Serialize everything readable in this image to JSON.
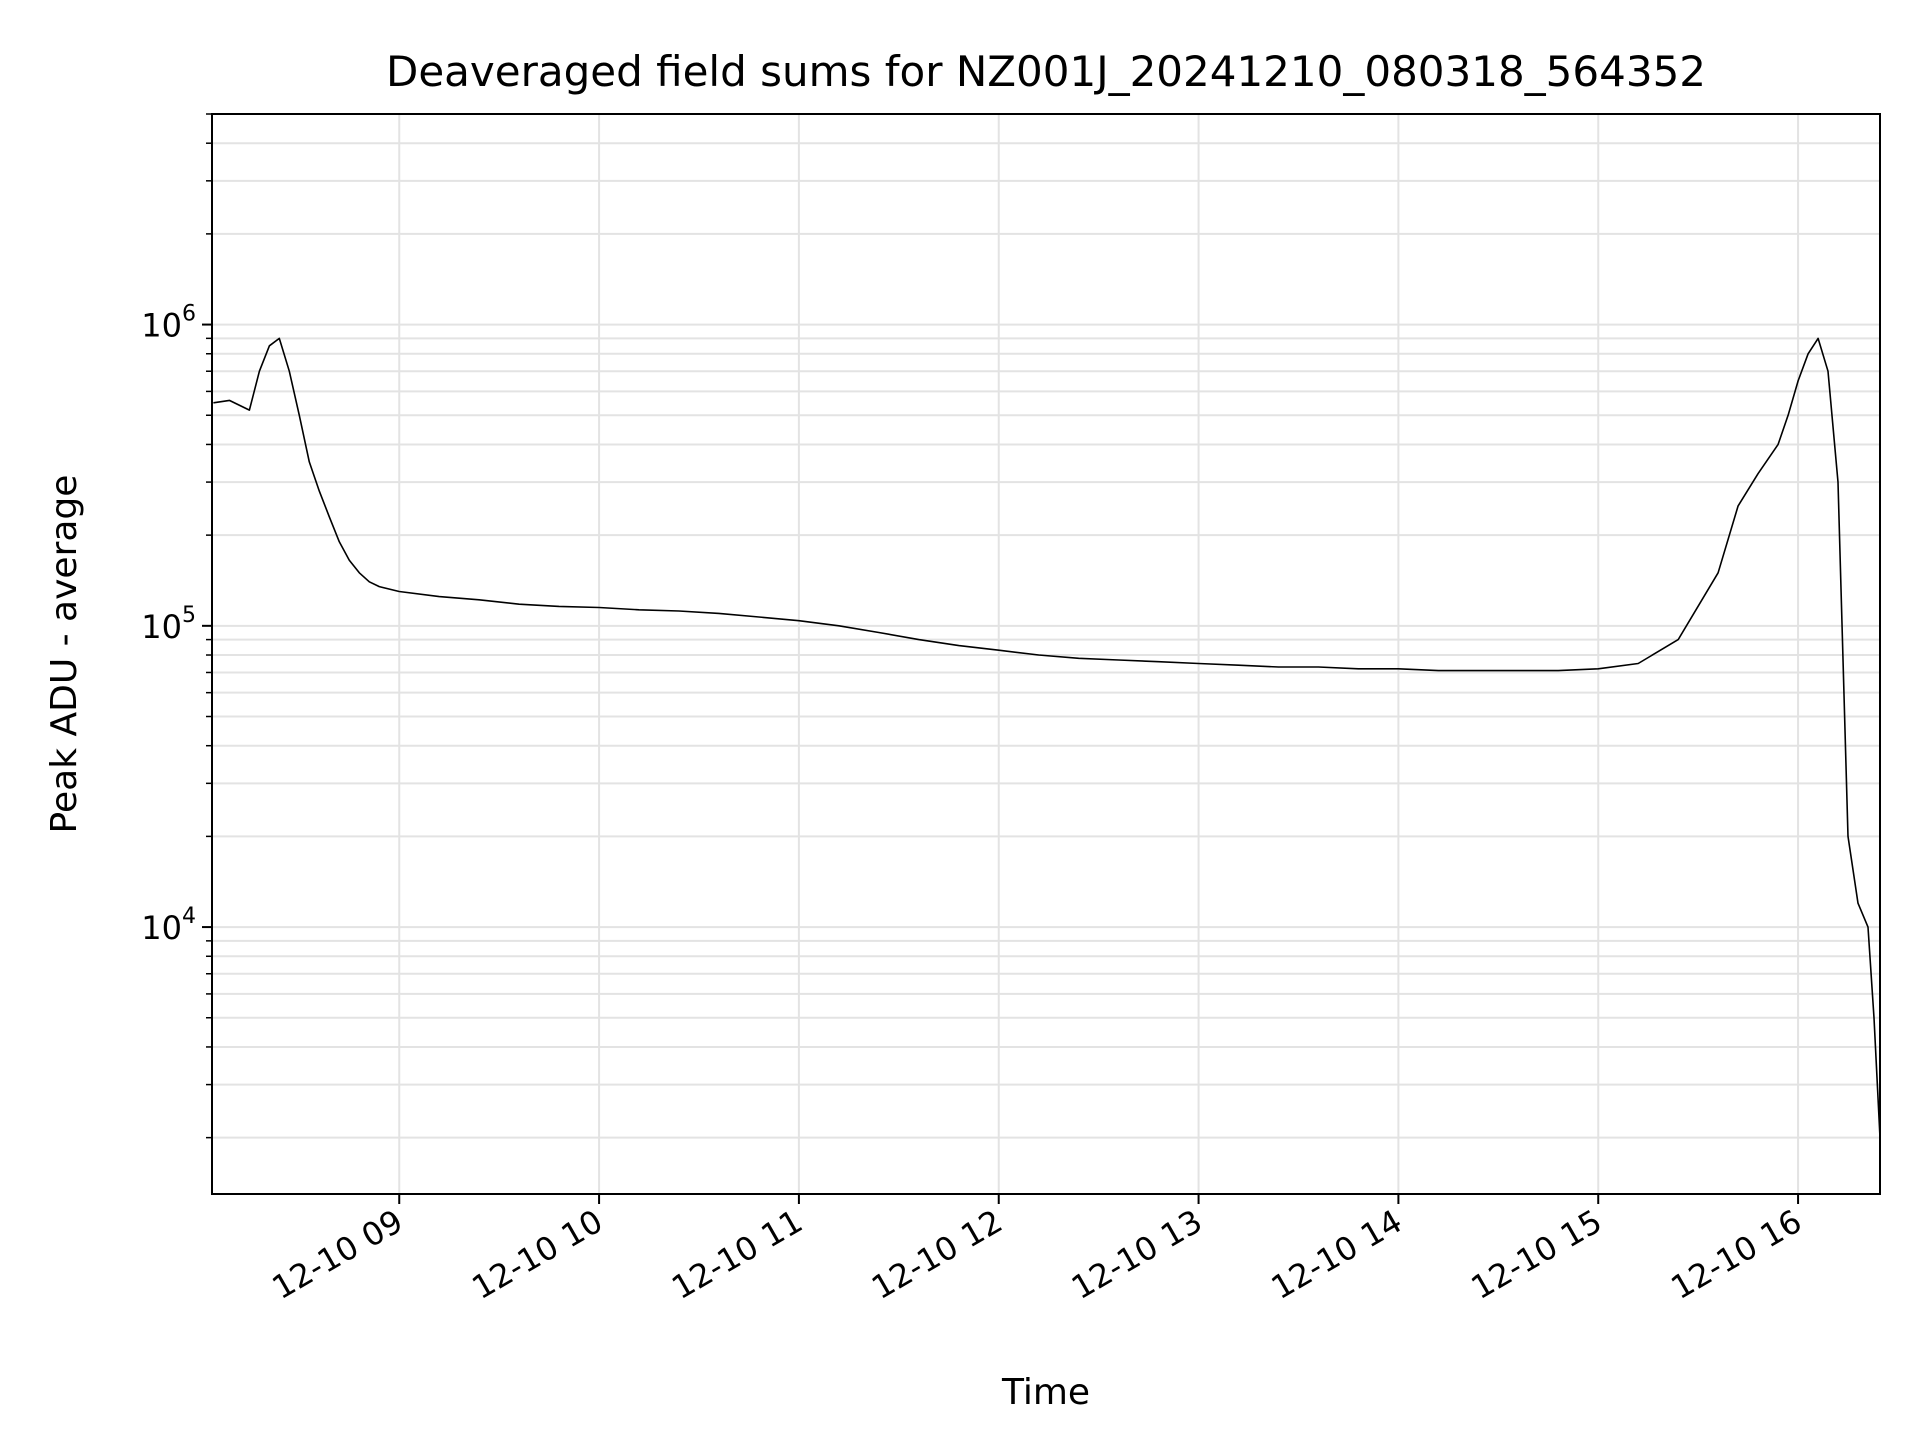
{
  "chart_data": {
    "type": "line",
    "title": "Deaveraged field sums for NZ001J_20241210_080318_564352",
    "xlabel": "Time",
    "ylabel": "Peak ADU - average",
    "yscale": "log",
    "xlim": [
      8.063,
      16.41
    ],
    "ylim": [
      1300,
      5000000
    ],
    "grid": true,
    "x_ticks": [
      {
        "value": 9,
        "label": "12-10 09"
      },
      {
        "value": 10,
        "label": "12-10 10"
      },
      {
        "value": 11,
        "label": "12-10 11"
      },
      {
        "value": 12,
        "label": "12-10 12"
      },
      {
        "value": 13,
        "label": "12-10 13"
      },
      {
        "value": 14,
        "label": "12-10 14"
      },
      {
        "value": 15,
        "label": "12-10 15"
      },
      {
        "value": 16,
        "label": "12-10 16"
      }
    ],
    "y_ticks": [
      {
        "value": 10000,
        "base": "10",
        "exp": "4"
      },
      {
        "value": 100000,
        "base": "10",
        "exp": "5"
      },
      {
        "value": 1000000,
        "base": "10",
        "exp": "6"
      }
    ],
    "series": [
      {
        "color": "#000000",
        "note_x_units": "hour of day on 2024-12-10",
        "x": [
          8.07,
          8.15,
          8.25,
          8.3,
          8.35,
          8.4,
          8.45,
          8.5,
          8.55,
          8.6,
          8.65,
          8.7,
          8.75,
          8.8,
          8.85,
          8.9,
          9.0,
          9.2,
          9.4,
          9.6,
          9.8,
          10.0,
          10.2,
          10.4,
          10.6,
          10.8,
          11.0,
          11.2,
          11.4,
          11.6,
          11.8,
          12.0,
          12.2,
          12.4,
          12.6,
          12.8,
          13.0,
          13.2,
          13.4,
          13.6,
          13.8,
          14.0,
          14.2,
          14.4,
          14.6,
          14.8,
          15.0,
          15.2,
          15.4,
          15.6,
          15.7,
          15.8,
          15.9,
          15.95,
          16.0,
          16.05,
          16.1,
          16.15,
          16.2,
          16.25,
          16.3,
          16.35,
          16.38,
          16.41
        ],
        "y": [
          550000,
          560000,
          520000,
          700000,
          850000,
          900000,
          700000,
          500000,
          350000,
          280000,
          230000,
          190000,
          165000,
          150000,
          140000,
          135000,
          130000,
          125000,
          122000,
          118000,
          116000,
          115000,
          113000,
          112000,
          110000,
          107000,
          104000,
          100000,
          95000,
          90000,
          86000,
          83000,
          80000,
          78000,
          77000,
          76000,
          75000,
          74000,
          73000,
          73000,
          72000,
          72000,
          71000,
          71000,
          71000,
          71000,
          72000,
          75000,
          90000,
          150000,
          250000,
          320000,
          400000,
          500000,
          650000,
          800000,
          900000,
          700000,
          300000,
          20000,
          12000,
          10000,
          5000,
          2000
        ]
      }
    ]
  }
}
